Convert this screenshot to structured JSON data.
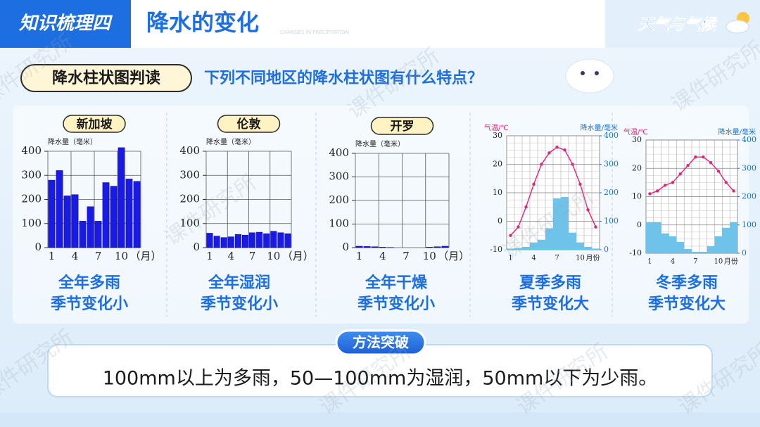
{
  "header": {
    "tag": "知识梳理四",
    "title": "降水的变化",
    "subtitle": "CHANGES IN PRECIPITATION",
    "brand": "天气与气候"
  },
  "section": {
    "label": "降水柱状图判读",
    "question": "下列不同地区的降水柱状图有什么特点？"
  },
  "chart_data": [
    {
      "type": "bar",
      "title": "新加坡",
      "y_label": "降水量（毫米）",
      "x_label": "（月）",
      "categories": [
        "1",
        null,
        null,
        "4",
        null,
        null,
        "7",
        null,
        null,
        "10",
        null,
        null
      ],
      "values": [
        280,
        320,
        215,
        220,
        110,
        170,
        110,
        270,
        255,
        415,
        285,
        275
      ],
      "color": "#1a1ae6",
      "ylim": [
        0,
        400
      ],
      "yticks": [
        0,
        100,
        200,
        300,
        400
      ],
      "grid": true,
      "caption": [
        "全年多雨",
        "季节变化小"
      ]
    },
    {
      "type": "bar",
      "title": "伦敦",
      "y_label": "降水量（毫米）",
      "x_label": "（月）",
      "categories": [
        "1",
        null,
        null,
        "4",
        null,
        null,
        "7",
        null,
        null,
        "10",
        null,
        null
      ],
      "values": [
        60,
        48,
        42,
        45,
        55,
        52,
        62,
        64,
        58,
        68,
        62,
        58
      ],
      "color": "#1a1ae6",
      "ylim": [
        0,
        400
      ],
      "yticks": [
        0,
        100,
        200,
        300,
        400
      ],
      "grid": true,
      "caption": [
        "全年湿润",
        "季节变化小"
      ]
    },
    {
      "type": "bar",
      "title": "开罗",
      "y_label": "降水量（毫米）",
      "x_label": "（月）",
      "categories": [
        "1",
        null,
        null,
        "4",
        null,
        null,
        "7",
        null,
        null,
        "10",
        null,
        null
      ],
      "values": [
        6,
        5,
        4,
        2,
        1,
        0,
        0,
        0,
        0,
        2,
        4,
        6
      ],
      "color": "#1a1ae6",
      "ylim": [
        0,
        400
      ],
      "yticks": [
        0,
        100,
        200,
        300,
        400
      ],
      "grid": true,
      "caption": [
        "全年干燥",
        "季节变化小"
      ]
    },
    {
      "type": "bar-line",
      "y_label": "气温/℃",
      "y2_label": "降水量/毫米",
      "x_label": "月份",
      "categories": [
        "1",
        null,
        null,
        "4",
        null,
        null,
        "7",
        null,
        null,
        "10",
        null,
        null
      ],
      "ylim": [
        -10,
        30
      ],
      "yticks": [
        -10,
        0,
        10,
        20,
        30
      ],
      "y2lim": [
        0,
        400
      ],
      "y2ticks": [
        0,
        100,
        200,
        300,
        400
      ],
      "grid": true,
      "series": [
        {
          "type": "bar",
          "axis": "y2",
          "color": "#6ec3ea",
          "values": [
            4,
            6,
            10,
            25,
            35,
            75,
            180,
            185,
            60,
            25,
            10,
            4
          ]
        },
        {
          "type": "line",
          "color": "#e0247c",
          "values": [
            -5,
            -2,
            5,
            13,
            20,
            24,
            26,
            25,
            20,
            13,
            4,
            -2
          ]
        }
      ],
      "caption": [
        "夏季多雨",
        "季节变化大"
      ]
    },
    {
      "type": "bar-line",
      "y_label": "气温/℃",
      "y2_label": "降水量/毫米",
      "x_label": "月份",
      "categories": [
        "1",
        null,
        null,
        "4",
        null,
        null,
        "7",
        null,
        null,
        "10",
        null,
        null
      ],
      "ylim": [
        -10,
        30
      ],
      "yticks": [
        -10,
        0,
        10,
        20,
        30
      ],
      "y2lim": [
        0,
        400
      ],
      "y2ticks": [
        0,
        100,
        200,
        300,
        400
      ],
      "grid": true,
      "series": [
        {
          "type": "bar",
          "axis": "y2",
          "color": "#6ec3ea",
          "values": [
            110,
            110,
            70,
            60,
            40,
            15,
            5,
            5,
            25,
            60,
            90,
            110
          ]
        },
        {
          "type": "line",
          "color": "#e0247c",
          "values": [
            11,
            12,
            14,
            15,
            18,
            21,
            24,
            24,
            22,
            19,
            15,
            12
          ]
        }
      ],
      "caption": [
        "冬季多雨",
        "季节变化大"
      ]
    }
  ],
  "method": {
    "label": "方法突破",
    "text": "100mm以上为多雨，50—100mm为湿润，50mm以下为少雨。"
  },
  "watermark": "课件研究所"
}
